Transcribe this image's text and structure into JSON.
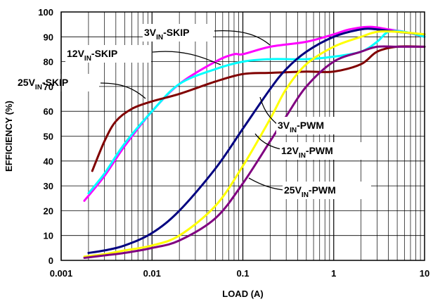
{
  "chart_data": {
    "type": "line",
    "xlabel": "LOAD (A)",
    "ylabel": "EFFICIENCY (%)",
    "xscale": "log",
    "xlim": [
      0.001,
      10
    ],
    "ylim": [
      0,
      100
    ],
    "grid": true,
    "x_ticks": [
      {
        "value": 0.001,
        "label": "0.001"
      },
      {
        "value": 0.01,
        "label": "0.01"
      },
      {
        "value": 0.1,
        "label": "0.1"
      },
      {
        "value": 1,
        "label": "1"
      },
      {
        "value": 10,
        "label": "10"
      }
    ],
    "y_ticks": [
      {
        "value": 0,
        "label": "0"
      },
      {
        "value": 10,
        "label": "10"
      },
      {
        "value": 20,
        "label": "20"
      },
      {
        "value": 30,
        "label": "30"
      },
      {
        "value": 40,
        "label": "40"
      },
      {
        "value": 50,
        "label": "50"
      },
      {
        "value": 60,
        "label": "60"
      },
      {
        "value": 70,
        "label": "70"
      },
      {
        "value": 80,
        "label": "80"
      },
      {
        "value": 90,
        "label": "90"
      },
      {
        "value": 100,
        "label": "100"
      }
    ],
    "series": [
      {
        "label_main": "3V",
        "label_sub": "IN",
        "label_tail": "-SKIP",
        "color": "#ff00ff",
        "x": [
          0.0018,
          0.003,
          0.005,
          0.01,
          0.02,
          0.05,
          0.08,
          0.1,
          0.2,
          0.5,
          1,
          1.5,
          2.5,
          4,
          6,
          10
        ],
        "y": [
          24,
          34,
          46,
          60,
          71,
          80,
          83,
          83,
          86,
          88,
          91,
          93,
          94,
          93,
          92,
          90
        ]
      },
      {
        "label_main": "12V",
        "label_sub": "IN",
        "label_tail": "-SKIP",
        "color": "#00ffff",
        "x": [
          0.002,
          0.003,
          0.005,
          0.01,
          0.02,
          0.05,
          0.1,
          0.2,
          0.5,
          1,
          2,
          3,
          4,
          6,
          10
        ],
        "y": [
          27,
          35,
          47,
          60,
          71,
          77,
          80,
          81,
          81,
          82,
          84,
          88,
          92,
          92,
          90
        ]
      },
      {
        "label_main": "25V",
        "label_sub": "IN",
        "label_tail": "-SKIP",
        "color": "#800000",
        "x": [
          0.0022,
          0.003,
          0.004,
          0.006,
          0.01,
          0.02,
          0.05,
          0.1,
          0.2,
          0.5,
          1,
          2,
          3,
          5,
          10
        ],
        "y": [
          36,
          48,
          56,
          61,
          64,
          67,
          72,
          75,
          75.5,
          76,
          76,
          79,
          84,
          86,
          86
        ]
      },
      {
        "label_main": "3V",
        "label_sub": "IN",
        "label_tail": "-PWM",
        "color": "#000080",
        "x": [
          0.002,
          0.003,
          0.005,
          0.01,
          0.02,
          0.05,
          0.1,
          0.2,
          0.3,
          0.5,
          1,
          2,
          3,
          5,
          10
        ],
        "y": [
          3,
          4,
          6,
          11,
          20,
          37,
          53,
          69,
          77,
          84,
          90,
          93,
          93,
          92,
          91
        ]
      },
      {
        "label_main": "12V",
        "label_sub": "IN",
        "label_tail": "-PWM",
        "color": "#ffff00",
        "x": [
          0.0018,
          0.003,
          0.005,
          0.01,
          0.02,
          0.05,
          0.1,
          0.2,
          0.3,
          0.5,
          1,
          2,
          3,
          5,
          10
        ],
        "y": [
          1.5,
          2.5,
          4,
          6,
          10,
          22,
          38,
          57,
          69,
          79,
          86,
          90,
          92,
          92,
          91
        ]
      },
      {
        "label_main": "25V",
        "label_sub": "IN",
        "label_tail": "-PWM",
        "color": "#800080",
        "x": [
          0.0018,
          0.003,
          0.005,
          0.01,
          0.02,
          0.05,
          0.1,
          0.2,
          0.3,
          0.5,
          1,
          2,
          3,
          5,
          10
        ],
        "y": [
          1,
          2,
          3,
          5,
          8,
          17,
          31,
          48,
          58,
          70,
          80,
          84,
          86,
          86,
          86
        ]
      }
    ]
  }
}
